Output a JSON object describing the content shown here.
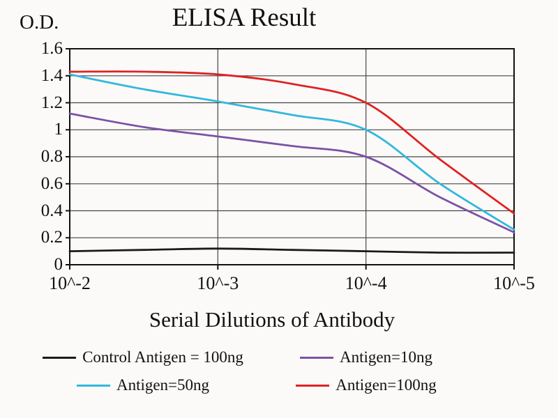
{
  "chart_data": {
    "type": "line",
    "title": "ELISA Result",
    "ylabel": "O.D.",
    "xlabel": "Serial Dilutions of Antibody",
    "x_tick_labels": [
      "10^-2",
      "10^-3",
      "10^-4",
      "10^-5"
    ],
    "x_tick_exponents": [
      2,
      3,
      4,
      5
    ],
    "xlim_exponents": [
      2,
      5
    ],
    "y_ticks": [
      0,
      0.2,
      0.4,
      0.6,
      0.8,
      1,
      1.2,
      1.4,
      1.6
    ],
    "ylim": [
      0,
      1.6
    ],
    "grid": true,
    "legend_position": "bottom",
    "legend_columns": 2,
    "series": [
      {
        "name": "Control Antigen = 100ng",
        "color": "#1a1a1a",
        "x_exponents": [
          2,
          2.5,
          3,
          3.5,
          4,
          4.5,
          5
        ],
        "values": [
          0.1,
          0.11,
          0.12,
          0.11,
          0.1,
          0.09,
          0.09
        ]
      },
      {
        "name": "Antigen=10ng",
        "color": "#7b52a5",
        "x_exponents": [
          2,
          2.5,
          3,
          3.5,
          4,
          4.5,
          5
        ],
        "values": [
          1.12,
          1.02,
          0.95,
          0.88,
          0.8,
          0.5,
          0.24
        ]
      },
      {
        "name": "Antigen=50ng",
        "color": "#31b8dd",
        "x_exponents": [
          2,
          2.5,
          3,
          3.5,
          4,
          4.5,
          5
        ],
        "values": [
          1.41,
          1.3,
          1.21,
          1.11,
          1.0,
          0.6,
          0.26
        ]
      },
      {
        "name": "Antigen=100ng",
        "color": "#e02222",
        "x_exponents": [
          2,
          2.5,
          3,
          3.5,
          4,
          4.5,
          5
        ],
        "values": [
          1.43,
          1.43,
          1.41,
          1.34,
          1.2,
          0.78,
          0.38
        ]
      }
    ]
  }
}
